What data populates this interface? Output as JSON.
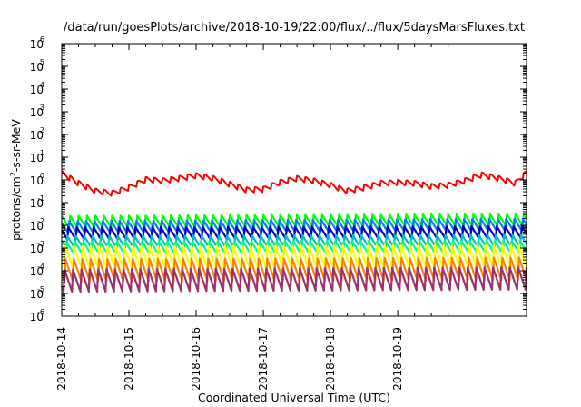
{
  "chart_data": {
    "type": "line",
    "title": "/data/run/goesPlots/archive/2018-10-19/22:00/flux/../flux/5daysMarsFluxes.txt",
    "xlabel": "Coordinated Universal Time (UTC)",
    "ylabel": {
      "pre": "protons/cm",
      "sup": "2",
      "post": "-s-sr-MeV"
    },
    "yscale": "log",
    "ylim": [
      1e-06,
      1000000.0
    ],
    "xlim": [
      "2018-10-14T00:00",
      "2018-10-20T22:00"
    ],
    "ytick_exponents": [
      -6,
      -5,
      -4,
      -3,
      -2,
      -1,
      0,
      1,
      2,
      3,
      4,
      5,
      6
    ],
    "xticks": [
      "2018-10-14",
      "2018-10-15",
      "2018-10-16",
      "2018-10-17",
      "2018-10-18",
      "2018-10-19"
    ],
    "grid": false,
    "legend": "none",
    "series": [
      {
        "color": "#ff0000",
        "x": [
          "2018-10-14T00:00",
          "2018-10-14T06:00",
          "2018-10-14T12:00",
          "2018-10-14T18:00",
          "2018-10-15T00:00",
          "2018-10-15T06:00",
          "2018-10-15T12:00",
          "2018-10-15T18:00",
          "2018-10-16T00:00",
          "2018-10-16T06:00",
          "2018-10-16T12:00",
          "2018-10-16T18:00",
          "2018-10-17T00:00",
          "2018-10-17T06:00",
          "2018-10-17T12:00",
          "2018-10-17T18:00",
          "2018-10-18T00:00",
          "2018-10-18T06:00",
          "2018-10-18T12:00",
          "2018-10-18T18:00",
          "2018-10-19T00:00",
          "2018-10-19T06:00",
          "2018-10-19T12:00",
          "2018-10-19T18:00",
          "2018-10-20T00:00",
          "2018-10-20T06:00",
          "2018-10-20T12:00",
          "2018-10-20T18:00",
          "2018-10-20T22:00"
        ],
        "y": [
          1.5,
          0.55,
          0.25,
          0.2,
          0.35,
          0.8,
          0.7,
          0.9,
          1.2,
          0.9,
          0.5,
          0.28,
          0.3,
          0.6,
          0.9,
          0.7,
          0.45,
          0.25,
          0.35,
          0.55,
          0.6,
          0.55,
          0.4,
          0.45,
          0.7,
          1.3,
          0.9,
          0.55,
          1.6
        ]
      },
      {
        "color": "#00ff00",
        "x": [
          "2018-10-14T00:00",
          "2018-10-20T22:00"
        ],
        "y": [
          0.015,
          0.018
        ]
      },
      {
        "color": "#0080ff",
        "x": [
          "2018-10-14T00:00",
          "2018-10-20T22:00"
        ],
        "y": [
          0.0085,
          0.011
        ]
      },
      {
        "color": "#0000c0",
        "x": [
          "2018-10-14T00:00",
          "2018-10-20T22:00"
        ],
        "y": [
          0.0045,
          0.005
        ]
      },
      {
        "color": "#00c0c0",
        "x": [
          "2018-10-14T00:00",
          "2018-10-20T22:00"
        ],
        "y": [
          0.0018,
          0.002
        ]
      },
      {
        "color": "#00ff80",
        "x": [
          "2018-10-14T00:00",
          "2018-10-20T22:00"
        ],
        "y": [
          0.001,
          0.0011
        ]
      },
      {
        "color": "#ffff00",
        "x": [
          "2018-10-14T00:00",
          "2018-10-20T22:00"
        ],
        "y": [
          0.00035,
          0.0004
        ]
      },
      {
        "color": "#ff8000",
        "x": [
          "2018-10-14T00:00",
          "2018-10-20T22:00"
        ],
        "y": [
          0.00012,
          0.00014
        ]
      },
      {
        "color": "#a0306a",
        "x": [
          "2018-10-14T00:00",
          "2018-10-20T22:00"
        ],
        "y": [
          4e-05,
          5e-05
        ]
      }
    ]
  }
}
